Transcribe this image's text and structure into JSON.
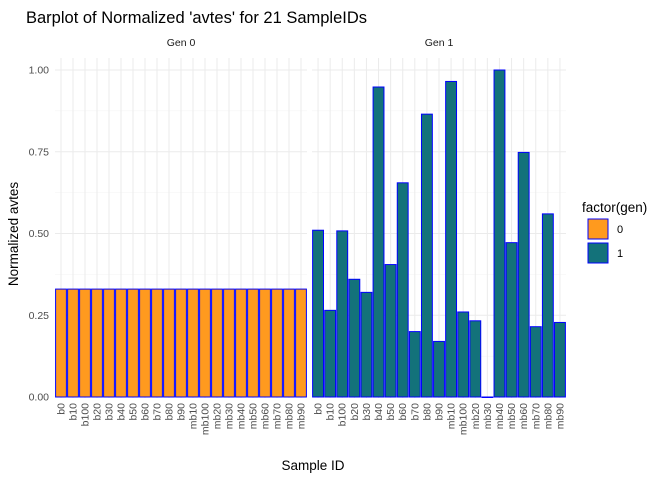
{
  "chart_data": {
    "type": "bar",
    "title": "Barplot of Normalized 'avtes' for 21 SampleIDs",
    "xlabel": "Sample ID",
    "ylabel": "Normalized avtes",
    "ylim": [
      0,
      1.05
    ],
    "yticks": [
      "0.00",
      "0.25",
      "0.50",
      "0.75",
      "1.00"
    ],
    "ytick_values": [
      0,
      0.25,
      0.5,
      0.75,
      1.0
    ],
    "categories": [
      "b0",
      "b10",
      "b100",
      "b20",
      "b30",
      "b40",
      "b50",
      "b60",
      "b70",
      "b80",
      "b90",
      "mb10",
      "mb100",
      "mb20",
      "mb30",
      "mb40",
      "mb50",
      "mb60",
      "mb70",
      "mb80",
      "mb90"
    ],
    "grid": true,
    "legend": {
      "title": "factor(gen)",
      "position": "right",
      "entries": [
        {
          "label": "0",
          "color": "#FF9A1E"
        },
        {
          "label": "1",
          "color": "#13727A"
        }
      ]
    },
    "bar_outline_color": "#0000FF",
    "panels": [
      {
        "strip": "Gen 0",
        "series_label": "0",
        "color": "#FF9A1E",
        "values": [
          0.33,
          0.33,
          0.33,
          0.33,
          0.33,
          0.33,
          0.33,
          0.33,
          0.33,
          0.33,
          0.33,
          0.33,
          0.33,
          0.33,
          0.33,
          0.33,
          0.33,
          0.33,
          0.33,
          0.33,
          0.33
        ]
      },
      {
        "strip": "Gen 1",
        "series_label": "1",
        "color": "#13727A",
        "values": [
          0.51,
          0.265,
          0.508,
          0.36,
          0.32,
          0.948,
          0.405,
          0.655,
          0.2,
          0.865,
          0.17,
          0.965,
          0.26,
          0.233,
          0.0,
          1.0,
          0.472,
          0.748,
          0.215,
          0.56,
          0.228
        ]
      }
    ]
  }
}
